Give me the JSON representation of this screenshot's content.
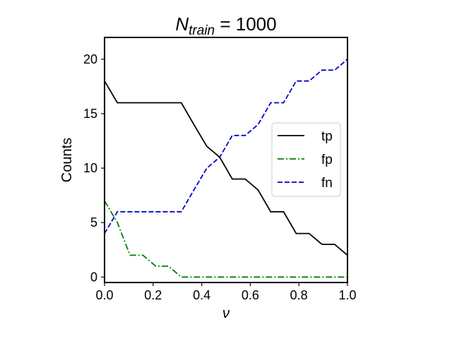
{
  "chart_data": {
    "type": "line",
    "title_main": "N",
    "title_sub": "train",
    "title_rest": " = 1000",
    "xlabel": "ν",
    "ylabel": "Counts",
    "xlim": [
      0.0,
      1.0
    ],
    "ylim": [
      -0.5,
      22.0
    ],
    "xticks": [
      0.0,
      0.2,
      0.4,
      0.6,
      0.8,
      1.0
    ],
    "xtick_labels": [
      "0.0",
      "0.2",
      "0.4",
      "0.6",
      "0.8",
      "1.0"
    ],
    "yticks": [
      0,
      5,
      10,
      15,
      20
    ],
    "ytick_labels": [
      "0",
      "5",
      "10",
      "15",
      "20"
    ],
    "grid": false,
    "legend_position": "center-right",
    "x": [
      0.0,
      0.053,
      0.105,
      0.158,
      0.211,
      0.263,
      0.316,
      0.368,
      0.421,
      0.474,
      0.526,
      0.579,
      0.632,
      0.684,
      0.737,
      0.789,
      0.842,
      0.895,
      0.947,
      1.0
    ],
    "series": [
      {
        "name": "tp",
        "color": "#000000",
        "dash": "solid",
        "values": [
          18,
          16,
          16,
          16,
          16,
          16,
          16,
          14,
          12,
          11,
          9,
          9,
          8,
          6,
          6,
          4,
          4,
          3,
          3,
          2
        ]
      },
      {
        "name": "fp",
        "color": "#008000",
        "dash": "dashdot",
        "values": [
          7,
          5,
          2,
          2,
          1,
          1,
          0,
          0,
          0,
          0,
          0,
          0,
          0,
          0,
          0,
          0,
          0,
          0,
          0,
          0
        ]
      },
      {
        "name": "fn",
        "color": "#0000cc",
        "dash": "dashed",
        "values": [
          4,
          6,
          6,
          6,
          6,
          6,
          6,
          8,
          10,
          11,
          13,
          13,
          14,
          16,
          16,
          18,
          18,
          19,
          19,
          20
        ]
      }
    ]
  }
}
